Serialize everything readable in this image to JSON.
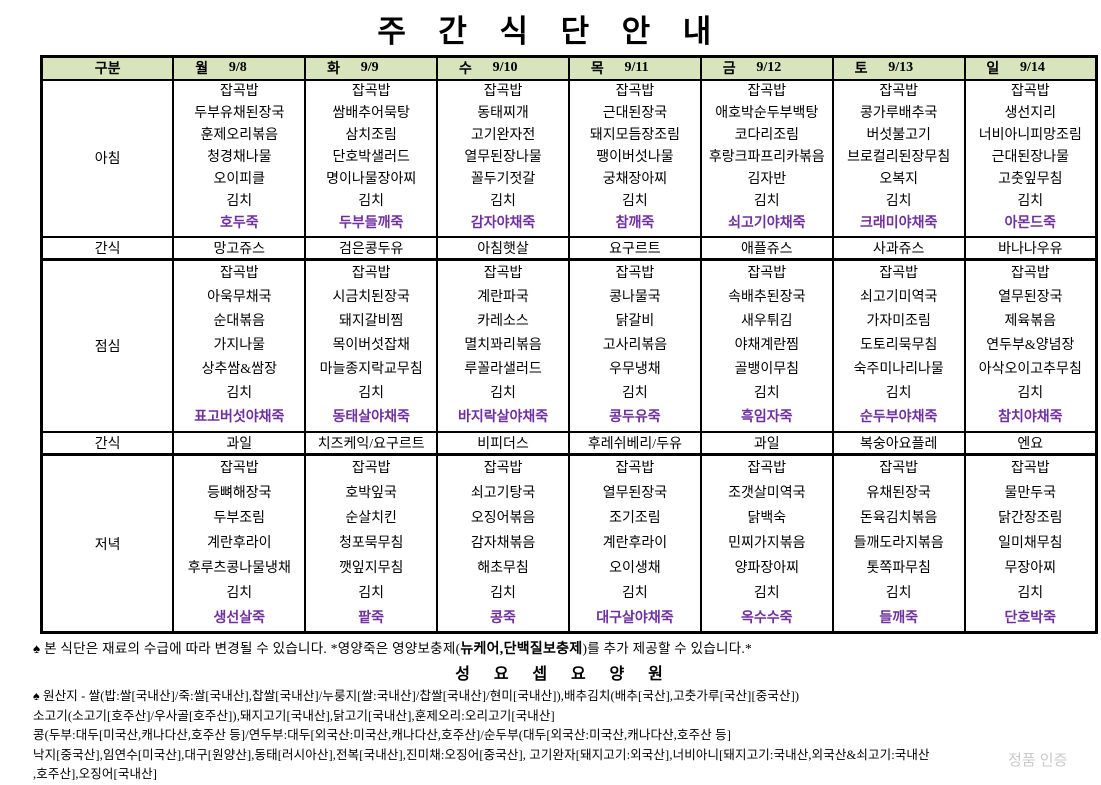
{
  "title": "주 간 식 단 안 내",
  "table": {
    "corner_label": "구분",
    "days": [
      {
        "name": "월",
        "date": "9/8"
      },
      {
        "name": "화",
        "date": "9/9"
      },
      {
        "name": "수",
        "date": "9/10"
      },
      {
        "name": "목",
        "date": "9/11"
      },
      {
        "name": "금",
        "date": "9/12"
      },
      {
        "name": "토",
        "date": "9/13"
      },
      {
        "name": "일",
        "date": "9/14"
      }
    ],
    "rows": [
      {
        "label": "아침",
        "type": "meal",
        "cells": [
          {
            "items": [
              "잡곡밥",
              "두부유채된장국",
              "훈제오리볶음",
              "청경채나물",
              "오이피클",
              "김치"
            ],
            "porridge": "호두죽"
          },
          {
            "items": [
              "잡곡밥",
              "쌈배추어묵탕",
              "삼치조림",
              "단호박샐러드",
              "명이나물장아찌",
              "김치"
            ],
            "porridge": "두부들깨죽"
          },
          {
            "items": [
              "잡곡밥",
              "동태찌개",
              "고기완자전",
              "열무된장나물",
              "꼴두기젓갈",
              "김치"
            ],
            "porridge": "감자야채죽"
          },
          {
            "items": [
              "잡곡밥",
              "근대된장국",
              "돼지모듬장조림",
              "팽이버섯나물",
              "궁채장아찌",
              "김치"
            ],
            "porridge": "참깨죽"
          },
          {
            "items": [
              "잡곡밥",
              "애호박순두부백탕",
              "코다리조림",
              "후랑크파프리카볶음",
              "김자반",
              "김치"
            ],
            "porridge": "쇠고기야채죽"
          },
          {
            "items": [
              "잡곡밥",
              "콩가루배추국",
              "버섯불고기",
              "브로컬리된장무침",
              "오복지",
              "김치"
            ],
            "porridge": "크래미야채죽"
          },
          {
            "items": [
              "잡곡밥",
              "생선지리",
              "너비아니피망조림",
              "근대된장나물",
              "고춧잎무침",
              "김치"
            ],
            "porridge": "아몬드죽"
          }
        ]
      },
      {
        "label": "간식",
        "type": "snack",
        "cells": [
          "망고쥬스",
          "검은콩두유",
          "아침햇살",
          "요구르트",
          "애플쥬스",
          "사과쥬스",
          "바나나우유"
        ]
      },
      {
        "label": "점심",
        "type": "meal",
        "cells": [
          {
            "items": [
              "잡곡밥",
              "아욱무채국",
              "순대볶음",
              "가지나물",
              "상추쌈&쌈장",
              "김치"
            ],
            "porridge": "표고버섯야채죽"
          },
          {
            "items": [
              "잡곡밥",
              "시금치된장국",
              "돼지갈비찜",
              "목이버섯잡채",
              "마늘종지락교무침",
              "김치"
            ],
            "porridge": "동태살야채죽"
          },
          {
            "items": [
              "잡곡밥",
              "계란파국",
              "카레소스",
              "멸치꽈리볶음",
              "루꼴라샐러드",
              "김치"
            ],
            "porridge": "바지락살야채죽"
          },
          {
            "items": [
              "잡곡밥",
              "콩나물국",
              "닭갈비",
              "고사리볶음",
              "우무냉채",
              "김치"
            ],
            "porridge": "콩두유죽"
          },
          {
            "items": [
              "잡곡밥",
              "속배추된장국",
              "새우튀김",
              "야채계란찜",
              "골뱅이무침",
              "김치"
            ],
            "porridge": "흑임자죽"
          },
          {
            "items": [
              "잡곡밥",
              "쇠고기미역국",
              "가자미조림",
              "도토리묵무침",
              "숙주미나리나물",
              "김치"
            ],
            "porridge": "순두부야채죽"
          },
          {
            "items": [
              "잡곡밥",
              "열무된장국",
              "제육볶음",
              "연두부&양념장",
              "아삭오이고추무침",
              "김치"
            ],
            "porridge": "참치야채죽"
          }
        ]
      },
      {
        "label": "간식",
        "type": "snack",
        "cells": [
          "과일",
          "치즈케익/요구르트",
          "비피더스",
          "후레쉬베리/두유",
          "과일",
          "복숭아요플레",
          "엔요"
        ]
      },
      {
        "label": "저녁",
        "type": "meal",
        "cells": [
          {
            "items": [
              "잡곡밥",
              "등뼈해장국",
              "두부조림",
              "계란후라이",
              "후루츠콩나물냉채",
              "김치"
            ],
            "porridge": "생선살죽"
          },
          {
            "items": [
              "잡곡밥",
              "호박잎국",
              "순살치킨",
              "청포묵무침",
              "깻잎지무침",
              "김치"
            ],
            "porridge": "팥죽"
          },
          {
            "items": [
              "잡곡밥",
              "쇠고기탕국",
              "오징어볶음",
              "감자채볶음",
              "해초무침",
              "김치"
            ],
            "porridge": "콩죽"
          },
          {
            "items": [
              "잡곡밥",
              "열무된장국",
              "조기조림",
              "계란후라이",
              "오이생채",
              "김치"
            ],
            "porridge": "대구살야채죽"
          },
          {
            "items": [
              "잡곡밥",
              "조갯살미역국",
              "닭백숙",
              "민찌가지볶음",
              "양파장아찌",
              "김치"
            ],
            "porridge": "옥수수죽"
          },
          {
            "items": [
              "잡곡밥",
              "유채된장국",
              "돈육김치볶음",
              "들깨도라지볶음",
              "톳쪽파무침",
              "김치"
            ],
            "porridge": "들깨죽"
          },
          {
            "items": [
              "잡곡밥",
              "물만두국",
              "닭간장조림",
              "일미채무침",
              "무장아찌",
              "김치"
            ],
            "porridge": "단호박죽"
          }
        ]
      }
    ]
  },
  "notes": {
    "change_note_pre": "♠ 본 식단은 재료의 수급에 따라 변경될 수 있습니다.   *영양죽은 영양보충제(",
    "change_note_bold": "뉴케어,단백질보충제",
    "change_note_post": ")를 추가 제공할 수 있습니다.*",
    "facility_name": "성 요 셉 요 양 원",
    "origin_lines": [
      "♠ 원산지 - 쌀(밥:쌀[국내산]/죽:쌀[국내산],찹쌀[국내산]/누룽지[쌀:국내산]/찹쌀[국내산]/현미[국내산]),배추김치(배추[국산],고춧가루[국산][중국산])",
      "소고기(소고기[호주산]/우사골[호주산]),돼지고기[국내산],닭고기[국내산],훈제오리:오리고기[국내산]",
      "콩(두부:대두[미국산,캐나다산,호주산 등]/연두부:대두[외국산:미국산,캐나다산,호주산]/순두부(대두[외국산:미국산,캐나다산,호주산 등]",
      "낙지[중국산],임연수[미국산],대구[원양산],동태[러시아산],전복[국내산],진미채:오징어[중국산], 고기완자[돼지고기:외국산],너비아니[돼지고기:국내산,외국산&쇠고기:국내산",
      ",호주산],오징어[국내산]"
    ]
  },
  "watermark": "정품 인증",
  "colors": {
    "header_bg": "#D8E4BC",
    "porridge_text": "#7030A0",
    "border": "#000000"
  }
}
